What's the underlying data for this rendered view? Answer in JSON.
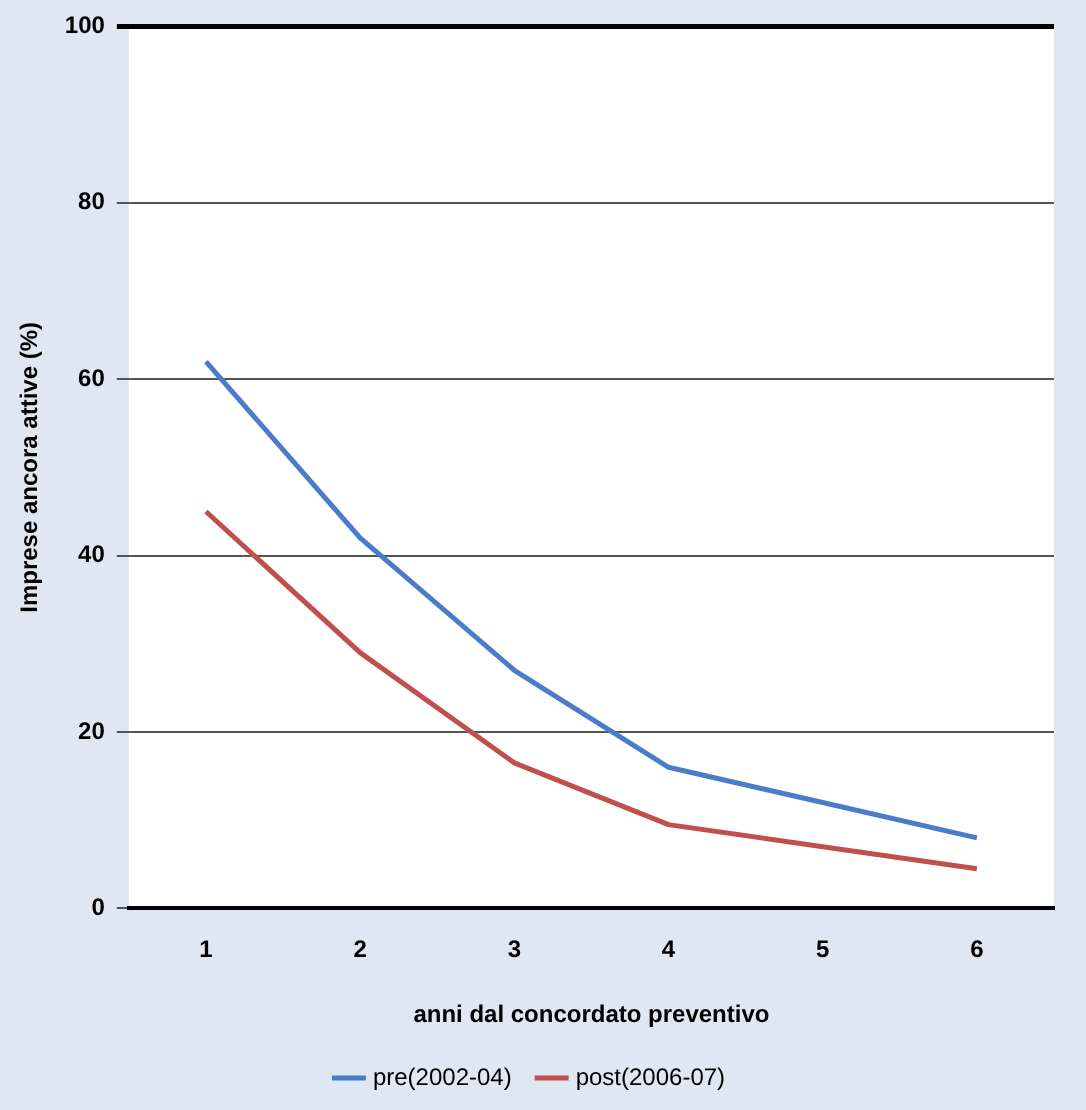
{
  "chart_data": {
    "type": "line",
    "xlabel": "anni dal concordato preventivo",
    "ylabel": "Imprese ancora attive (%)",
    "categories": [
      "1",
      "2",
      "3",
      "4",
      "5",
      "6"
    ],
    "series": [
      {
        "name": "pre(2002-04)",
        "color": "#4a7cc9",
        "values": [
          62,
          42,
          27,
          16,
          12,
          8
        ]
      },
      {
        "name": "post(2006-07)",
        "color": "#c0504d",
        "values": [
          45,
          29,
          16.5,
          9.5,
          7,
          4.5
        ]
      }
    ],
    "ylim": [
      0,
      100
    ],
    "yticks": [
      0,
      20,
      40,
      60,
      80,
      100
    ],
    "grid": "y",
    "legend": "bottom",
    "marker": "none",
    "line_style": "solid"
  }
}
